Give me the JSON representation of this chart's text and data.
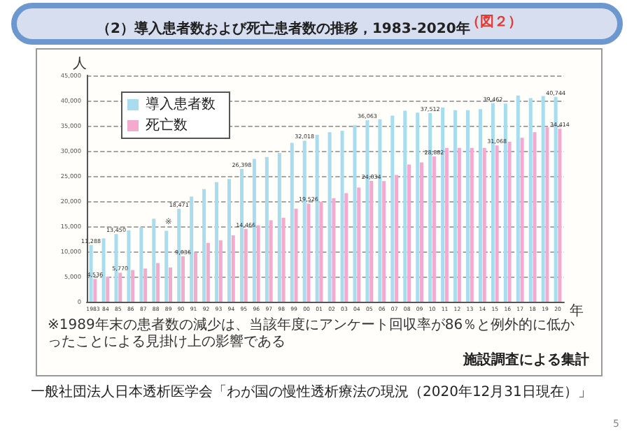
{
  "chart_data": {
    "type": "bar",
    "title": "（2）導入患者数および死亡患者数の推移，1983-2020年",
    "ylabel": "人",
    "xlabel": "年",
    "annotations": [
      "（図２）",
      {
        "text": "※",
        "x": "89",
        "y": 14100
      },
      "※1989年末の患者数の減少は、当該年度にアンケート回収率が86％と例外的に低かったことによる見掛け上の影響である",
      "施設調査による集計",
      "一般社団法人日本透析医学会「わが国の慢性透析療法の現況（2020年12月31日現在）」",
      "5"
    ],
    "categories": [
      "1983",
      "84",
      "85",
      "86",
      "87",
      "88",
      "89",
      "90",
      "91",
      "92",
      "93",
      "94",
      "95",
      "96",
      "97",
      "98",
      "99",
      "00",
      "01",
      "02",
      "03",
      "04",
      "05",
      "06",
      "07",
      "08",
      "09",
      "10",
      "11",
      "12",
      "13",
      "14",
      "15",
      "16",
      "17",
      "18",
      "19",
      "20"
    ],
    "series": [
      {
        "name": "導入患者数",
        "color": "#a8dcef",
        "values": [
          11288,
          12600,
          13450,
          14200,
          14800,
          16500,
          14100,
          18471,
          20900,
          22400,
          23800,
          24400,
          26398,
          28400,
          28800,
          29600,
          31600,
          32018,
          33200,
          33700,
          34000,
          35100,
          36063,
          36300,
          37000,
          38000,
          37600,
          37512,
          38600,
          38100,
          38100,
          38300,
          39462,
          39400,
          41000,
          40500,
          40900,
          40744
        ],
        "value_labels": [
          "11,288",
          null,
          "13,450",
          null,
          null,
          null,
          null,
          "18,471",
          null,
          null,
          null,
          null,
          "26,398",
          null,
          null,
          null,
          null,
          "32,018",
          null,
          null,
          null,
          null,
          "36,063",
          null,
          null,
          null,
          null,
          "37,512",
          null,
          null,
          null,
          null,
          "39,462",
          null,
          null,
          null,
          null,
          "40,744"
        ]
      },
      {
        "name": "死亡数",
        "color": "#f4a9cf",
        "values": [
          4536,
          5000,
          5770,
          6300,
          6600,
          7700,
          6800,
          9036,
          9800,
          11700,
          12200,
          13200,
          14466,
          15200,
          16200,
          16700,
          18500,
          19526,
          19900,
          20600,
          21600,
          22700,
          24034,
          24000,
          25200,
          27300,
          27700,
          28882,
          30600,
          30600,
          30600,
          30600,
          31068,
          31800,
          32600,
          33700,
          34700,
          34414
        ],
        "value_labels": [
          "4,536",
          null,
          "5,770",
          null,
          null,
          null,
          null,
          "9,036",
          null,
          null,
          null,
          null,
          "14,466",
          null,
          null,
          null,
          null,
          "19,526",
          null,
          null,
          null,
          null,
          "24,034",
          null,
          null,
          null,
          null,
          "28,882",
          null,
          null,
          null,
          null,
          "31,068",
          null,
          null,
          null,
          null,
          "34,414"
        ]
      }
    ],
    "ylim": [
      0,
      45000
    ],
    "yticks": [
      {
        "value": 0,
        "label": "0"
      },
      {
        "value": 5000,
        "label": "5,000"
      },
      {
        "value": 10000,
        "label": "10,000"
      },
      {
        "value": 15000,
        "label": "15,000"
      },
      {
        "value": 20000,
        "label": "20,000"
      },
      {
        "value": 25000,
        "label": "25,000"
      },
      {
        "value": 30000,
        "label": "30,000"
      },
      {
        "value": 35000,
        "label": "35,000"
      },
      {
        "value": 40000,
        "label": "40,000"
      },
      {
        "value": 45000,
        "label": "45,000"
      }
    ],
    "grid": "y",
    "legend": "top left"
  }
}
